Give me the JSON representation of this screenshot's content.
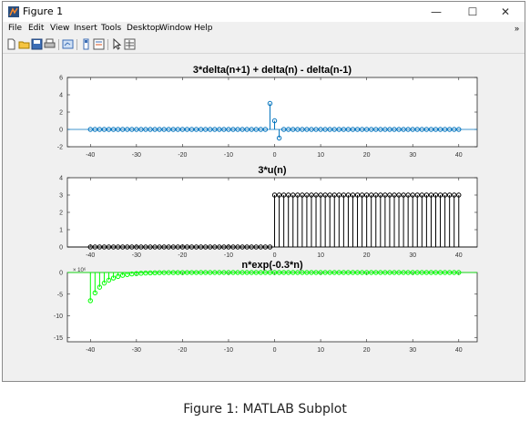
{
  "window": {
    "title": "Figure 1",
    "controls": {
      "minimize": "—",
      "maximize": "☐",
      "close": "✕"
    }
  },
  "menu": {
    "items": [
      "File",
      "Edit",
      "View",
      "Insert",
      "Tools",
      "Desktop",
      "Window",
      "Help"
    ],
    "overflow": "»"
  },
  "toolbar": {
    "icons": [
      "new-figure-icon",
      "open-file-icon",
      "save-icon",
      "print-icon",
      "link-plot-icon",
      "insert-colorbar-icon",
      "insert-legend-icon",
      "edit-plot-arrow-icon",
      "property-inspector-icon"
    ]
  },
  "caption": "Figure 1: MATLAB Subplot",
  "chart_data": [
    {
      "type": "stem",
      "title": "3*delta(n+1) + delta(n) - delta(n-1)",
      "x_range": [
        -40,
        40
      ],
      "xlim": [
        -45,
        44
      ],
      "ylim": [
        -2,
        6
      ],
      "yticks": [
        -2,
        0,
        2,
        4,
        6
      ],
      "xticks": [
        -40,
        -30,
        -20,
        -10,
        0,
        10,
        20,
        30,
        40
      ],
      "color": "#0072BD",
      "formula": "delta",
      "nonzero_points": [
        {
          "x": -1,
          "y": 3
        },
        {
          "x": 0,
          "y": 1
        },
        {
          "x": 1,
          "y": -1
        }
      ]
    },
    {
      "type": "stem",
      "title": "3*u(n)",
      "x_range": [
        -40,
        40
      ],
      "xlim": [
        -45,
        44
      ],
      "ylim": [
        0,
        4
      ],
      "yticks": [
        0,
        1,
        2,
        3,
        4
      ],
      "xticks": [
        -40,
        -30,
        -20,
        -10,
        0,
        10,
        20,
        30,
        40
      ],
      "color": "#000000",
      "formula": "3*u(n)",
      "step_value": 3
    },
    {
      "type": "stem",
      "title": "n*exp(-0.3*n)",
      "x_range": [
        -40,
        40
      ],
      "xlim": [
        -45,
        44
      ],
      "ylim": [
        -16,
        0
      ],
      "yticks": [
        -15,
        -10,
        -5,
        0
      ],
      "xticks": [
        -40,
        -30,
        -20,
        -10,
        0,
        10,
        20,
        30,
        40
      ],
      "exponent_label": "× 10⁶",
      "y_scale": 1000000,
      "color": "#00FF00",
      "formula": "n*exp(-0.3*n)"
    }
  ]
}
